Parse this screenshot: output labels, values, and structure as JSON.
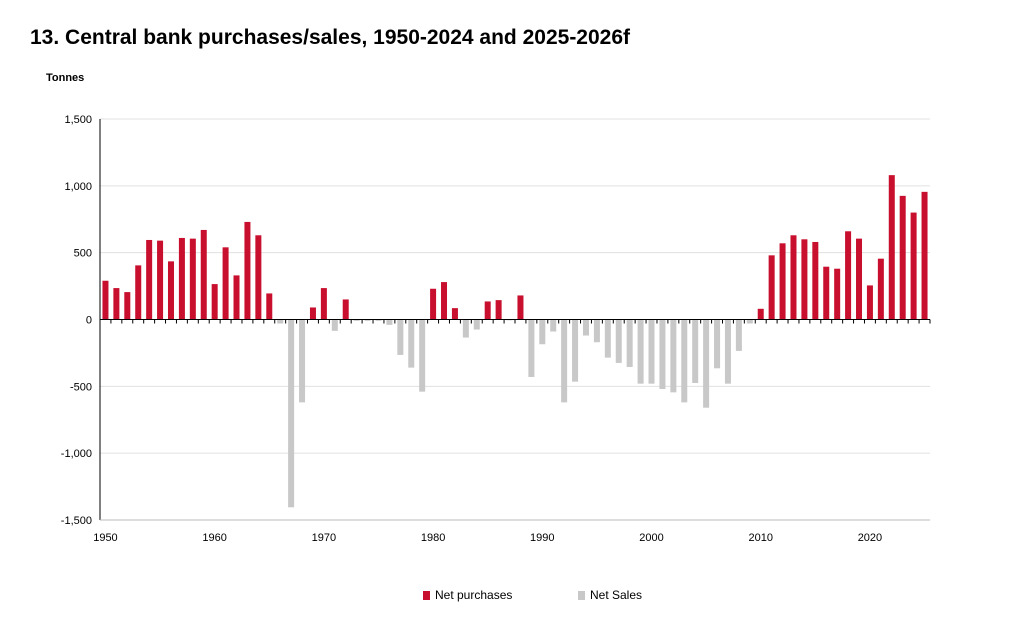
{
  "chart_data": {
    "type": "bar",
    "title": "13. Central bank purchases/sales, 1950-2024 and 2025-2026f",
    "ylabel": "Tonnes",
    "ylim": [
      -1500,
      1500
    ],
    "yticks": [
      1500,
      1000,
      500,
      0,
      -500,
      -1000,
      -1500
    ],
    "ytick_labels": [
      "1,500",
      "1,000",
      "500",
      "0",
      "-500",
      "-1,000",
      "-1,500"
    ],
    "xticks": [
      1950,
      1960,
      1970,
      1980,
      1990,
      2000,
      2010,
      2020
    ],
    "xtick_labels": [
      "1950",
      "1960",
      "1970",
      "1980",
      "1990",
      "2000",
      "2010",
      "2020"
    ],
    "grid": true,
    "legend_position": "bottom",
    "colors": {
      "purchases": "#c8102e",
      "sales": "#c8c8c8"
    },
    "series": [
      {
        "name": "Net purchases",
        "color": "#c8102e"
      },
      {
        "name": "Net Sales",
        "color": "#c8c8c8"
      }
    ],
    "years": [
      1950,
      1951,
      1952,
      1953,
      1954,
      1955,
      1956,
      1957,
      1958,
      1959,
      1960,
      1961,
      1962,
      1963,
      1964,
      1965,
      1966,
      1967,
      1968,
      1969,
      1970,
      1971,
      1972,
      1973,
      1974,
      1975,
      1976,
      1977,
      1978,
      1979,
      1980,
      1981,
      1982,
      1983,
      1984,
      1985,
      1986,
      1987,
      1988,
      1989,
      1990,
      1991,
      1992,
      1993,
      1994,
      1995,
      1996,
      1997,
      1998,
      1999,
      2000,
      2001,
      2002,
      2003,
      2004,
      2005,
      2006,
      2007,
      2008,
      2009,
      2010,
      2011,
      2012,
      2013,
      2014,
      2015,
      2016,
      2017,
      2018,
      2019,
      2020,
      2021,
      2022,
      2023,
      2024,
      2025
    ],
    "values": [
      290,
      235,
      205,
      405,
      595,
      590,
      435,
      610,
      605,
      670,
      265,
      540,
      330,
      730,
      630,
      195,
      -30,
      -1405,
      -620,
      90,
      235,
      -85,
      150,
      -10,
      -10,
      -10,
      -40,
      -265,
      -360,
      -540,
      230,
      280,
      85,
      -135,
      -75,
      135,
      145,
      -5,
      180,
      -430,
      -185,
      -90,
      -620,
      -465,
      -120,
      -170,
      -285,
      -325,
      -355,
      -480,
      -480,
      -520,
      -545,
      -620,
      -475,
      -660,
      -365,
      -480,
      -235,
      -30,
      80,
      480,
      570,
      630,
      600,
      580,
      395,
      380,
      660,
      605,
      255,
      455,
      1080,
      925,
      800,
      955
    ]
  }
}
